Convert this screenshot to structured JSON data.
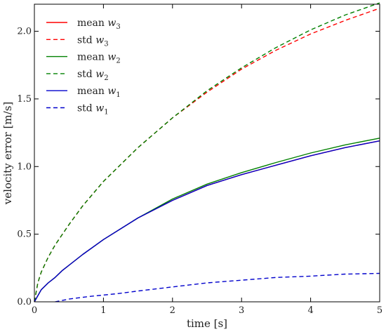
{
  "chart_data": {
    "type": "line",
    "xlabel": "time [s]",
    "ylabel": "velocity error [m/s]",
    "xlim": [
      0,
      5
    ],
    "ylim": [
      0,
      2.2
    ],
    "x_ticks": [
      "0",
      "1",
      "2",
      "3",
      "4",
      "5"
    ],
    "y_ticks": [
      "0.0",
      "0.5",
      "1.0",
      "1.5",
      "2.0"
    ],
    "grid": false,
    "legend_position": "top-left",
    "series": [
      {
        "name": "mean w3",
        "name_base": "mean ",
        "name_var": "w",
        "name_sub": "3",
        "color": "#ff0000",
        "style": "solid",
        "x": [
          0,
          0.1,
          0.2,
          0.3,
          0.4,
          0.5,
          0.7,
          1.0,
          1.5,
          2.0,
          2.5,
          3.0,
          3.5,
          4.0,
          4.5,
          5.0
        ],
        "y": [
          0,
          0.09,
          0.14,
          0.18,
          0.23,
          0.27,
          0.35,
          0.46,
          0.62,
          0.75,
          0.86,
          0.94,
          1.01,
          1.08,
          1.14,
          1.19
        ]
      },
      {
        "name": "std w3",
        "name_base": "std ",
        "name_var": "w",
        "name_sub": "3",
        "color": "#ff0000",
        "style": "dashed",
        "x": [
          0,
          0.05,
          0.1,
          0.2,
          0.3,
          0.5,
          0.7,
          1.0,
          1.5,
          2.0,
          2.5,
          3.0,
          3.5,
          4.0,
          4.5,
          5.0
        ],
        "y": [
          0,
          0.14,
          0.22,
          0.33,
          0.42,
          0.57,
          0.71,
          0.89,
          1.14,
          1.36,
          1.55,
          1.72,
          1.86,
          1.98,
          2.08,
          2.17
        ]
      },
      {
        "name": "mean w2",
        "name_base": "mean ",
        "name_var": "w",
        "name_sub": "2",
        "color": "#008000",
        "style": "solid",
        "x": [
          0,
          0.1,
          0.2,
          0.3,
          0.4,
          0.5,
          0.7,
          1.0,
          1.5,
          2.0,
          2.5,
          3.0,
          3.5,
          4.0,
          4.5,
          5.0
        ],
        "y": [
          0,
          0.09,
          0.14,
          0.18,
          0.23,
          0.27,
          0.35,
          0.46,
          0.62,
          0.76,
          0.87,
          0.955,
          1.03,
          1.1,
          1.16,
          1.21
        ]
      },
      {
        "name": "std w2",
        "name_base": "std ",
        "name_var": "w",
        "name_sub": "2",
        "color": "#008000",
        "style": "dashed",
        "x": [
          0,
          0.05,
          0.1,
          0.2,
          0.3,
          0.5,
          0.7,
          1.0,
          1.5,
          2.0,
          2.5,
          3.0,
          3.5,
          4.0,
          4.5,
          5.0
        ],
        "y": [
          0,
          0.14,
          0.22,
          0.33,
          0.42,
          0.57,
          0.71,
          0.89,
          1.14,
          1.36,
          1.56,
          1.73,
          1.88,
          2.01,
          2.12,
          2.21
        ]
      },
      {
        "name": "mean w1",
        "name_base": "mean ",
        "name_var": "w",
        "name_sub": "1",
        "color": "#0000cc",
        "style": "solid",
        "x": [
          0,
          0.1,
          0.2,
          0.3,
          0.4,
          0.5,
          0.7,
          1.0,
          1.5,
          2.0,
          2.5,
          3.0,
          3.5,
          4.0,
          4.5,
          5.0
        ],
        "y": [
          0,
          0.09,
          0.14,
          0.18,
          0.23,
          0.27,
          0.35,
          0.46,
          0.62,
          0.75,
          0.86,
          0.94,
          1.01,
          1.08,
          1.14,
          1.19
        ]
      },
      {
        "name": "std w1",
        "name_base": "std ",
        "name_var": "w",
        "name_sub": "1",
        "color": "#0000cc",
        "style": "dashed",
        "x": [
          0.3,
          0.5,
          0.8,
          1.0,
          1.2,
          1.5,
          2.0,
          2.5,
          3.0,
          3.5,
          4.0,
          4.5,
          5.0
        ],
        "y": [
          0,
          0.02,
          0.04,
          0.05,
          0.06,
          0.08,
          0.11,
          0.14,
          0.16,
          0.18,
          0.19,
          0.205,
          0.21
        ]
      }
    ]
  }
}
